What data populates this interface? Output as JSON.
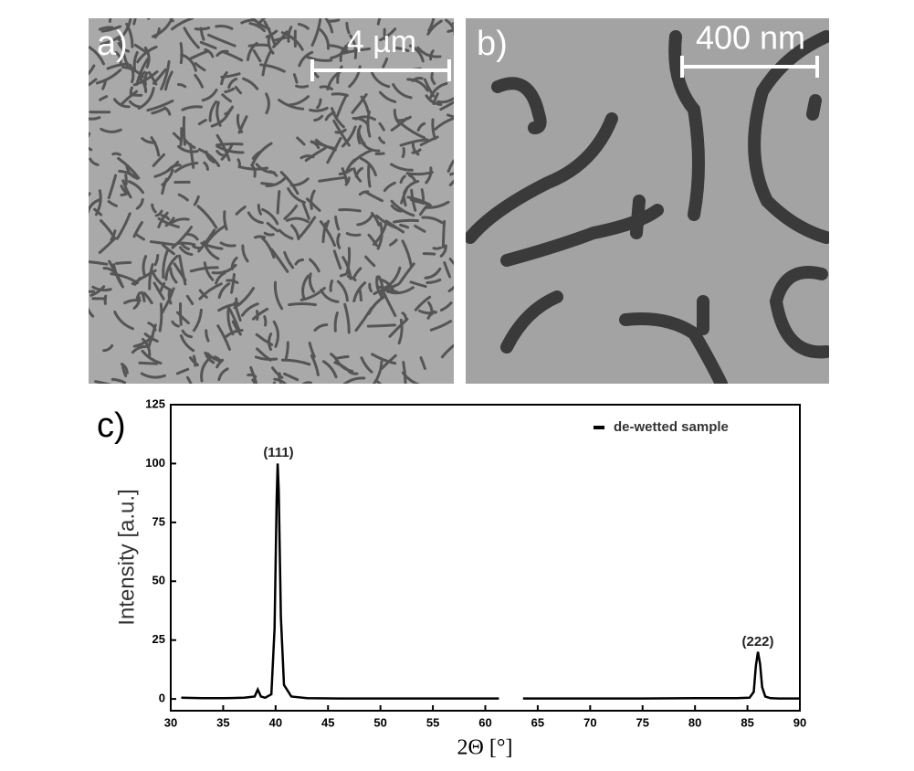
{
  "panels": [
    {
      "label": "a)",
      "scale_bar": "4 µm"
    },
    {
      "label": "b)",
      "scale_bar": "400 nm"
    }
  ],
  "chart_data": {
    "type": "line",
    "panel_label": "c)",
    "x_label": "2Θ [°]",
    "y_label": "Intensity [a.u.]",
    "xlim": [
      30,
      90
    ],
    "ylim": [
      -5,
      125
    ],
    "xticks": [
      30,
      35,
      40,
      45,
      50,
      55,
      60,
      65,
      70,
      75,
      80,
      85,
      90
    ],
    "yticks": [
      0,
      25,
      50,
      75,
      100,
      125
    ],
    "annotations": [
      "(111)",
      "(222)"
    ],
    "legend": "upper right",
    "series": [
      {
        "name": "de-wetted sample",
        "color": "#000000",
        "x": [
          31,
          33,
          35,
          37,
          38,
          38.3,
          38.6,
          39,
          39.6,
          39.9,
          40.1,
          40.2,
          40.3,
          40.5,
          40.8,
          41.5,
          43,
          46,
          50,
          55,
          60,
          61.3,
          62.5,
          63.6,
          66,
          70,
          75,
          80,
          84,
          85.2,
          85.6,
          85.8,
          86.0,
          86.2,
          86.4,
          86.7,
          87.2,
          88,
          90
        ],
        "values": [
          0.5,
          0.3,
          0.3,
          0.5,
          1,
          4,
          1,
          0.5,
          2,
          30,
          85,
          100,
          88,
          35,
          6,
          1,
          0.3,
          0.2,
          0.2,
          0.2,
          0.2,
          0.2,
          null,
          0.2,
          0.2,
          0.2,
          0.2,
          0.3,
          0.3,
          0.5,
          3,
          14,
          20,
          15,
          5,
          1,
          0.3,
          0.2,
          0.2
        ]
      }
    ]
  }
}
